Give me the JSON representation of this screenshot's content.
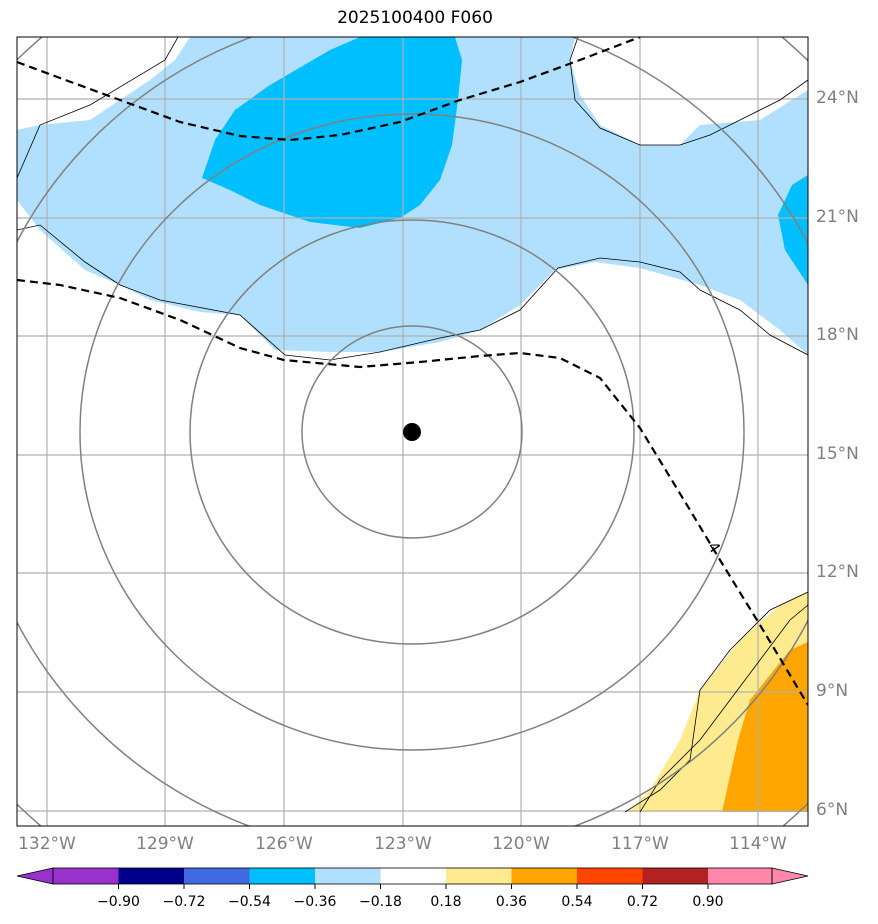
{
  "title": "2025100400 F060",
  "lat_labels": [
    "24°N",
    "21°N",
    "18°N",
    "15°N",
    "12°N",
    "9°N",
    "6°N"
  ],
  "lon_labels": [
    "132°W",
    "129°W",
    "126°W",
    "123°W",
    "120°W",
    "117°W",
    "114°W"
  ],
  "contour_label": "-4",
  "colorbar": {
    "ticks": [
      "−0.90",
      "−0.72",
      "−0.54",
      "−0.36",
      "−0.18",
      "0.18",
      "0.36",
      "0.54",
      "0.72",
      "0.90"
    ],
    "colors": [
      "#9932cc",
      "#00008b",
      "#4169e1",
      "#00bfff",
      "#b0e0fe",
      "#ffffff",
      "#ffeb8f",
      "#ffa500",
      "#ff4500",
      "#b22222",
      "#ff88aa"
    ]
  },
  "storm_center": {
    "lon": -122.8,
    "lat": 15.6
  }
}
